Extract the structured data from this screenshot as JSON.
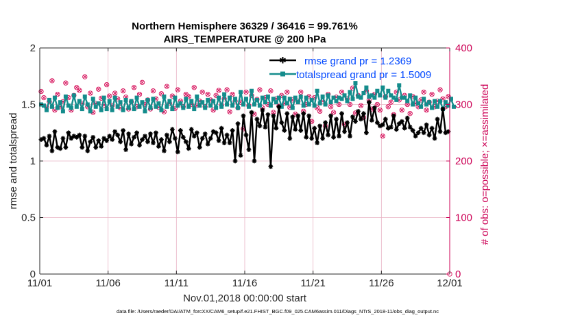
{
  "chart_data": {
    "type": "line",
    "title": [
      "Northern Hemisphere 36329 / 36416 = 99.761%",
      "AIRS_TEMPERATURE @ 200 hPa"
    ],
    "xlabel": "Nov.01,2018 00:00:00 start",
    "ylabel_left": "rmse and totalspread",
    "ylabel_right": "# of obs: o=possible; ×=assimilated",
    "xticks": [
      "11/01",
      "11/06",
      "11/11",
      "11/16",
      "11/21",
      "11/26",
      "12/01"
    ],
    "xlim": [
      0,
      30
    ],
    "ylim_left": [
      0,
      2
    ],
    "yticks_left": [
      "0",
      "0.5",
      "1",
      "1.5",
      "2"
    ],
    "ylim_right": [
      0,
      400
    ],
    "yticks_right": [
      "0",
      "100",
      "200",
      "300",
      "400"
    ],
    "legend": [
      "rmse grand pr = 1.2369",
      "totalspread grand pr = 1.5009"
    ],
    "colors": {
      "rmse": "#000000",
      "spread": "#148c8c",
      "obs": "#d6105a",
      "axis": "#cc0055",
      "legend_text": "#0047ff"
    },
    "series": [
      {
        "name": "rmse",
        "axis": "left",
        "values": [
          1.19,
          1.2,
          1.14,
          1.22,
          1.09,
          1.26,
          1.12,
          1.11,
          1.2,
          1.12,
          1.25,
          1.2,
          1.22,
          1.21,
          1.23,
          1.12,
          1.22,
          1.09,
          1.17,
          1.21,
          1.12,
          1.18,
          1.13,
          1.2,
          1.18,
          1.22,
          1.19,
          1.26,
          1.23,
          1.17,
          1.27,
          1.1,
          1.24,
          1.15,
          1.21,
          1.25,
          1.14,
          1.19,
          1.22,
          1.17,
          1.24,
          1.16,
          1.25,
          1.13,
          1.19,
          1.09,
          1.23,
          1.17,
          1.28,
          1.2,
          1.08,
          1.27,
          1.21,
          1.17,
          1.11,
          1.28,
          1.22,
          1.25,
          1.12,
          1.2,
          1.24,
          1.15,
          1.2,
          1.26,
          1.25,
          1.18,
          1.29,
          1.16,
          1.23,
          1.16,
          1.27,
          1.0,
          1.33,
          1.05,
          1.4,
          1.23,
          1.1,
          1.43,
          1.0,
          1.37,
          1.31,
          1.45,
          1.3,
          1.41,
          0.95,
          1.4,
          1.29,
          1.48,
          1.34,
          1.27,
          1.42,
          1.2,
          1.39,
          1.28,
          1.4,
          1.27,
          1.42,
          1.21,
          1.4,
          1.2,
          1.29,
          1.16,
          1.31,
          1.2,
          1.34,
          1.23,
          1.4,
          1.21,
          1.37,
          1.22,
          1.42,
          1.26,
          1.34,
          1.22,
          1.39,
          1.35,
          1.44,
          1.37,
          1.42,
          1.25,
          1.52,
          1.36,
          1.47,
          1.34,
          1.31,
          1.32,
          1.37,
          1.29,
          1.3,
          1.4,
          1.28,
          1.33,
          1.35,
          1.29,
          1.38,
          1.3,
          1.27,
          1.22,
          1.25,
          1.29,
          1.25,
          1.32,
          1.23,
          1.29,
          1.2,
          1.37,
          1.26,
          1.46,
          1.25,
          1.26
        ]
      },
      {
        "name": "totalspread",
        "axis": "left",
        "values": [
          1.5,
          1.49,
          1.45,
          1.54,
          1.48,
          1.56,
          1.47,
          1.52,
          1.44,
          1.57,
          1.49,
          1.47,
          1.58,
          1.48,
          1.53,
          1.46,
          1.57,
          1.5,
          1.44,
          1.55,
          1.48,
          1.51,
          1.45,
          1.56,
          1.46,
          1.53,
          1.45,
          1.56,
          1.48,
          1.52,
          1.45,
          1.54,
          1.47,
          1.53,
          1.46,
          1.56,
          1.48,
          1.52,
          1.44,
          1.54,
          1.47,
          1.55,
          1.48,
          1.51,
          1.45,
          1.57,
          1.48,
          1.53,
          1.46,
          1.56,
          1.49,
          1.51,
          1.47,
          1.55,
          1.48,
          1.53,
          1.46,
          1.57,
          1.49,
          1.52,
          1.47,
          1.54,
          1.49,
          1.53,
          1.47,
          1.56,
          1.48,
          1.59,
          1.5,
          1.56,
          1.49,
          1.55,
          1.47,
          1.61,
          1.5,
          1.55,
          1.48,
          1.62,
          1.5,
          1.54,
          1.49,
          1.56,
          1.52,
          1.57,
          1.49,
          1.55,
          1.52,
          1.56,
          1.48,
          1.56,
          1.51,
          1.55,
          1.47,
          1.56,
          1.52,
          1.57,
          1.49,
          1.56,
          1.5,
          1.54,
          1.49,
          1.62,
          1.51,
          1.57,
          1.5,
          1.58,
          1.52,
          1.56,
          1.53,
          1.56,
          1.55,
          1.58,
          1.53,
          1.61,
          1.55,
          1.69,
          1.57,
          1.56,
          1.6,
          1.65,
          1.57,
          1.58,
          1.56,
          1.62,
          1.58,
          1.65,
          1.56,
          1.62,
          1.58,
          1.56,
          1.54,
          1.67,
          1.56,
          1.56,
          1.53,
          1.58,
          1.5,
          1.56,
          1.51,
          1.48,
          1.55,
          1.5,
          1.52,
          1.47,
          1.53,
          1.48,
          1.53,
          1.46,
          1.52,
          1.49,
          1.55,
          1.48
        ]
      },
      {
        "name": "obs_possible",
        "axis": "right",
        "marker": "o",
        "values": [
          323,
          312,
          295,
          305,
          342,
          290,
          318,
          296,
          305,
          338,
          312,
          290,
          316,
          330,
          325,
          302,
          349,
          296,
          320,
          286,
          302,
          327,
          311,
          299,
          335,
          315,
          298,
          320,
          310,
          294,
          324,
          313,
          292,
          305,
          330,
          296,
          318,
          339,
          300,
          308,
          292,
          324,
          310,
          295,
          319,
          287,
          332,
          302,
          315,
          293,
          326,
          306,
          296,
          318,
          314,
          300,
          330,
          298,
          306,
          322,
          296,
          318,
          308,
          290,
          316,
          325,
          299,
          310,
          326,
          287,
          318,
          306,
          294,
          304,
          257,
          322,
          298,
          316,
          283,
          309,
          326,
          294,
          312,
          300,
          324,
          286,
          310,
          297,
          316,
          302,
          322,
          295,
          308,
          283,
          306,
          322,
          288,
          300,
          314,
          270,
          312,
          294,
          288,
          306,
          262,
          318,
          296,
          286,
          313,
          300,
          322,
          265,
          310,
          300,
          329,
          285,
          316,
          298,
          277,
          324,
          308,
          292,
          318,
          300,
          290,
          244,
          314,
          296,
          304,
          282,
          322,
          308,
          290,
          316,
          300,
          284,
          314,
          302,
          296,
          308,
          322,
          290,
          304,
          318,
          296,
          306,
          326,
          310,
          296,
          314
        ]
      },
      {
        "name": "obs_assimilated",
        "axis": "right",
        "marker": "x",
        "values": [
          323,
          312,
          295,
          305,
          342,
          290,
          318,
          296,
          305,
          338,
          312,
          290,
          316,
          330,
          325,
          302,
          349,
          296,
          320,
          286,
          302,
          327,
          311,
          299,
          335,
          315,
          298,
          320,
          310,
          294,
          324,
          313,
          292,
          305,
          330,
          296,
          318,
          339,
          300,
          308,
          292,
          324,
          310,
          295,
          319,
          287,
          332,
          302,
          315,
          293,
          326,
          306,
          296,
          318,
          314,
          300,
          330,
          298,
          306,
          322,
          296,
          318,
          308,
          290,
          316,
          325,
          299,
          310,
          326,
          287,
          318,
          306,
          294,
          304,
          257,
          322,
          298,
          316,
          283,
          309,
          326,
          294,
          312,
          300,
          324,
          286,
          310,
          297,
          316,
          302,
          322,
          295,
          308,
          283,
          306,
          322,
          288,
          300,
          314,
          270,
          312,
          294,
          288,
          306,
          262,
          318,
          296,
          286,
          313,
          300,
          322,
          265,
          310,
          300,
          329,
          285,
          316,
          298,
          277,
          324,
          308,
          292,
          318,
          300,
          290,
          244,
          314,
          296,
          304,
          282,
          322,
          308,
          290,
          316,
          300,
          284,
          314,
          302,
          296,
          308,
          322,
          290,
          304,
          318,
          296,
          306,
          326,
          310,
          296,
          314
        ]
      }
    ],
    "footer": "data file: /Users/raeder/DAI/ATM_forcXX/CAM6_setup/f.e21.FHIST_BGC.f09_025.CAM6assim.011/Diags_NTrS_2018-11/obs_diag_output.nc"
  }
}
